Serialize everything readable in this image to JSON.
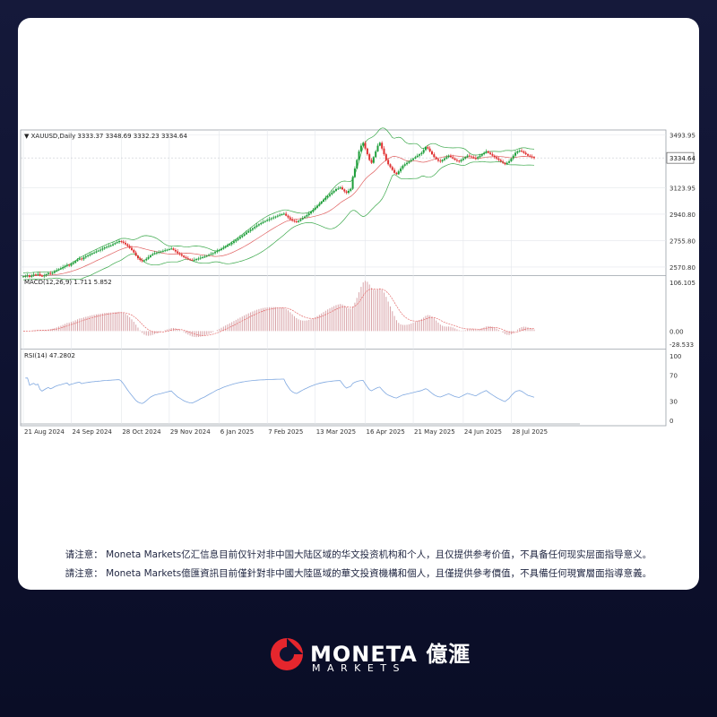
{
  "brand": {
    "name": "MONETA 億滙",
    "sub": "MARKETS",
    "accent": "#e5262d"
  },
  "disclaimer": {
    "simplified": "请注意： Moneta Markets亿汇信息目前仅针对非中国大陆区域的华文投资机构和个人，且仅提供参考价值，不具备任何现实层面指导意义。",
    "traditional": "請注意： Moneta Markets億匯資訊目前僅針對非中國大陸區域的華文投資機構和個人，且僅提供參考價值，不具備任何現實層面指導意義。"
  },
  "chart_data": {
    "type": "candlestick",
    "header": "XAUUSD,Daily  3333.37 3348.69 3332.23 3334.64",
    "price_axis_ticks": [
      3493.95,
      3334.64,
      3123.95,
      2940.8,
      2755.8,
      2570.8
    ],
    "price_axis_labels": [
      "3493.95",
      "3334.64",
      "3123.95",
      "2940.80",
      "2755.80",
      "2570.80"
    ],
    "current_price": 3334.64,
    "current_price_label": "3334.64",
    "ylim": [
      2520,
      3530
    ],
    "x_tick_labels": [
      "21 Aug 2024",
      "24 Sep 2024",
      "28 Oct 2024",
      "29 Nov 2024",
      "6 Jan 2025",
      "7 Feb 2025",
      "13 Mar 2025",
      "16 Apr 2025",
      "21 May 2025",
      "24 Jun 2025",
      "28 Jul 2025"
    ],
    "bollinger_period": 20,
    "colors": {
      "up": "#1e9e3a",
      "down": "#e03030",
      "band": "#3aa84a",
      "mid": "#e06060",
      "macd_hist": "#d8a3a8",
      "macd_signal": "#e46b6b",
      "rsi": "#7fa8e0",
      "grid": "#e3e6eb",
      "axis": "#9aa0a8"
    },
    "closes": [
      2505,
      2508,
      2512,
      2502,
      2510,
      2518,
      2515,
      2522,
      2510,
      2505,
      2512,
      2520,
      2528,
      2524,
      2530,
      2540,
      2548,
      2555,
      2562,
      2570,
      2578,
      2586,
      2580,
      2592,
      2600,
      2612,
      2622,
      2630,
      2625,
      2638,
      2646,
      2652,
      2660,
      2668,
      2672,
      2680,
      2686,
      2692,
      2700,
      2708,
      2712,
      2718,
      2722,
      2730,
      2738,
      2745,
      2752,
      2748,
      2740,
      2730,
      2718,
      2704,
      2690,
      2672,
      2650,
      2632,
      2620,
      2612,
      2618,
      2628,
      2640,
      2652,
      2660,
      2668,
      2672,
      2676,
      2680,
      2684,
      2688,
      2692,
      2696,
      2700,
      2690,
      2680,
      2668,
      2660,
      2650,
      2640,
      2632,
      2625,
      2620,
      2618,
      2622,
      2626,
      2630,
      2636,
      2640,
      2644,
      2650,
      2656,
      2662,
      2668,
      2676,
      2684,
      2690,
      2698,
      2706,
      2714,
      2722,
      2730,
      2740,
      2750,
      2760,
      2770,
      2780,
      2790,
      2800,
      2812,
      2822,
      2832,
      2842,
      2852,
      2862,
      2870,
      2878,
      2886,
      2892,
      2900,
      2906,
      2912,
      2918,
      2924,
      2930,
      2936,
      2940,
      2944,
      2930,
      2918,
      2905,
      2896,
      2890,
      2886,
      2894,
      2904,
      2914,
      2924,
      2934,
      2946,
      2958,
      2972,
      2986,
      3000,
      3014,
      3028,
      3042,
      3056,
      3068,
      3080,
      3092,
      3104,
      3116,
      3120,
      3128,
      3114,
      3100,
      3090,
      3104,
      3118,
      3200,
      3260,
      3320,
      3380,
      3420,
      3440,
      3400,
      3360,
      3320,
      3300,
      3340,
      3380,
      3420,
      3440,
      3400,
      3360,
      3320,
      3290,
      3270,
      3250,
      3230,
      3220,
      3240,
      3260,
      3280,
      3290,
      3300,
      3310,
      3320,
      3330,
      3340,
      3350,
      3360,
      3370,
      3390,
      3410,
      3400,
      3380,
      3360,
      3340,
      3325,
      3315,
      3310,
      3320,
      3330,
      3340,
      3350,
      3340,
      3330,
      3320,
      3315,
      3310,
      3320,
      3330,
      3340,
      3350,
      3345,
      3340,
      3335,
      3330,
      3340,
      3350,
      3360,
      3370,
      3380,
      3370,
      3360,
      3350,
      3340,
      3330,
      3320,
      3310,
      3300,
      3290,
      3300,
      3310,
      3330,
      3350,
      3370,
      3380,
      3385,
      3380,
      3370,
      3360,
      3350,
      3345,
      3340,
      3335
    ],
    "macd_axis_labels": [
      "106.105",
      "0.00",
      "-28.533"
    ],
    "macd_label": "MACD(12,26,9) 1.711 5.852",
    "rsi_axis_labels": [
      "100",
      "70",
      "30",
      "0"
    ],
    "rsi_label": "RSI(14) 47.2802"
  }
}
